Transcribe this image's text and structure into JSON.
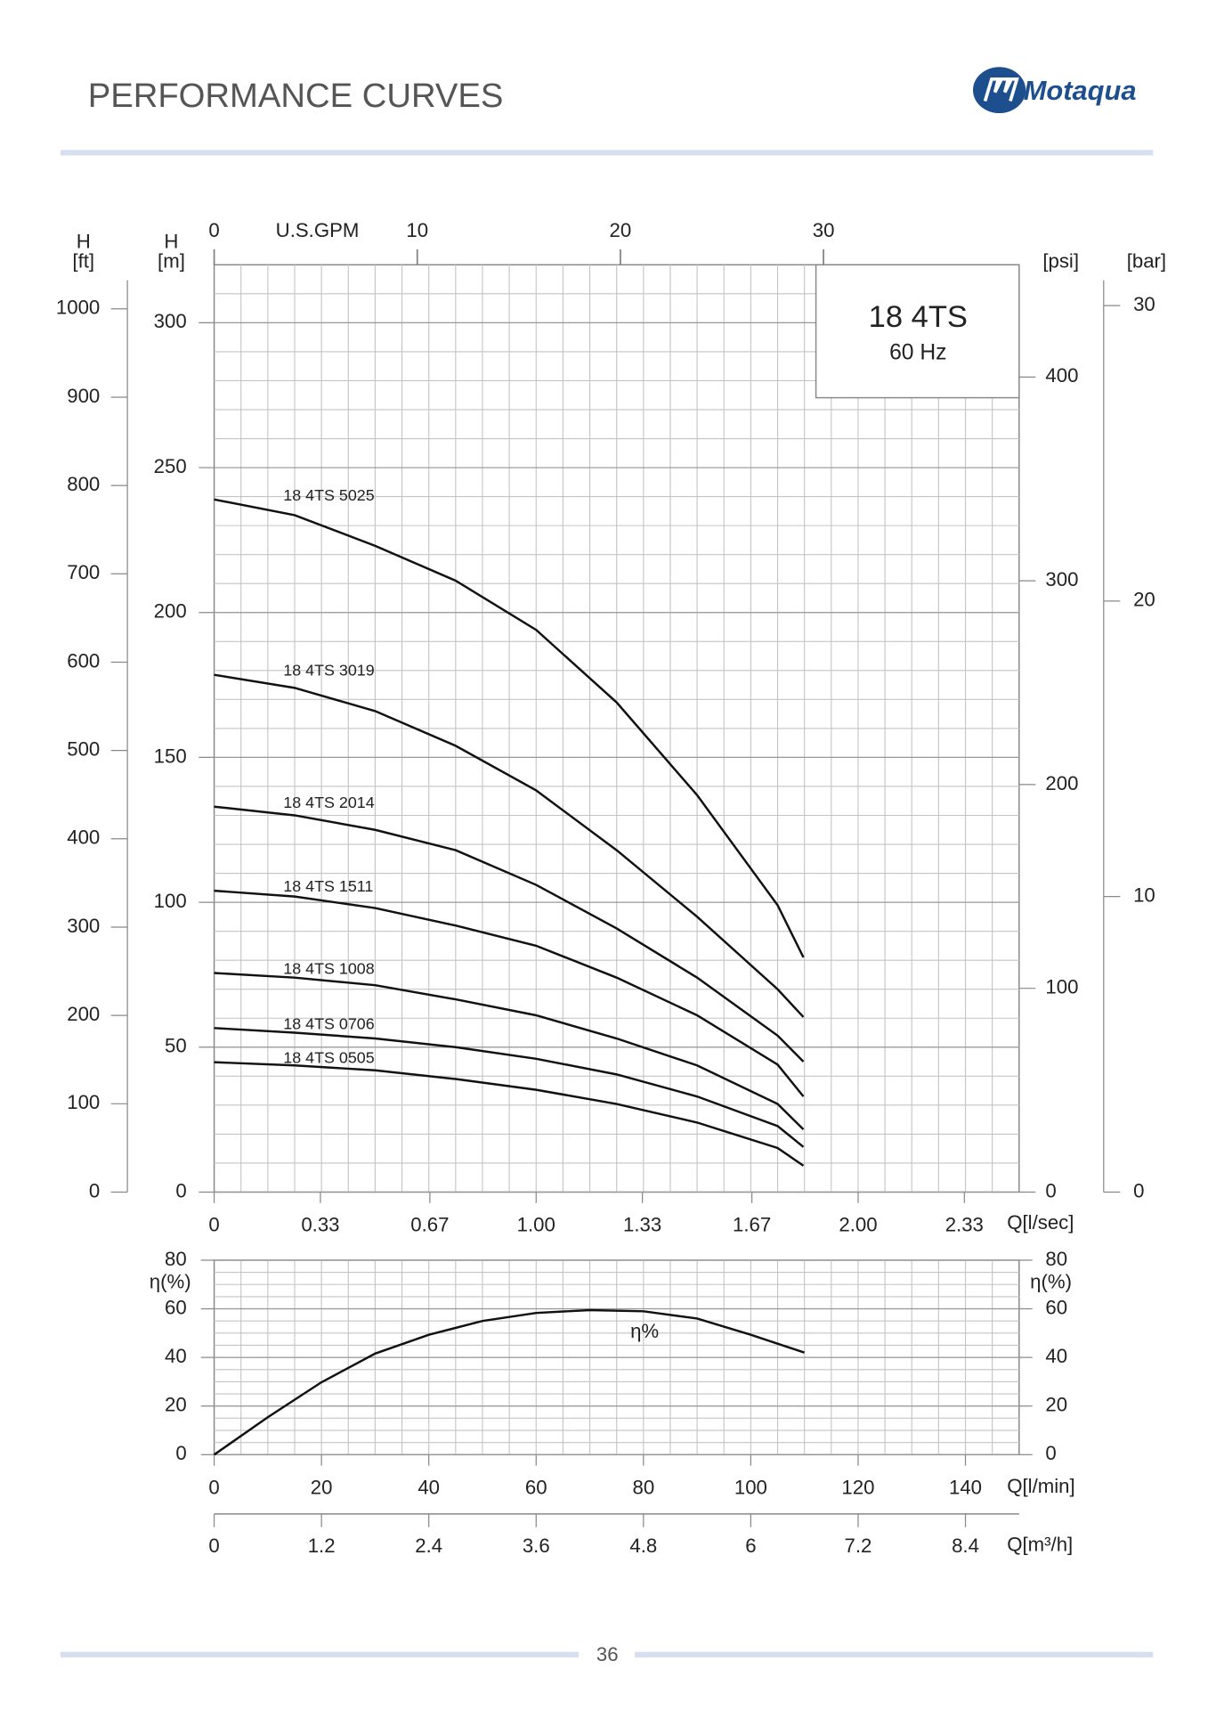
{
  "header": {
    "title": "PERFORMANCE CURVES",
    "logo": "Motaqua"
  },
  "chart_data": [
    {
      "type": "line",
      "title": "18 4TS",
      "subtitle": "60 Hz",
      "xlabel": "Q[l/sec]",
      "x2label": "U.S.GPM",
      "ylabel": {
        "symbol": "H",
        "unit": "[m]"
      },
      "y2label": {
        "symbol": "H",
        "unit": "[ft]"
      },
      "y3label": "[psi]",
      "y4label": "[bar]",
      "x": [
        0,
        0.25,
        0.5,
        0.75,
        1.0,
        1.25,
        1.5,
        1.75,
        1.83
      ],
      "xlim": [
        0,
        2.5
      ],
      "xticks": [
        0,
        0.33,
        0.67,
        {
          "value": 1,
          "label": "1.00"
        },
        1.33,
        1.67,
        {
          "value": 2,
          "label": "2.00"
        },
        2.33
      ],
      "x2lim": [
        0,
        39.63
      ],
      "x2ticks": [
        0,
        10,
        20,
        30
      ],
      "ylim": [
        0,
        320
      ],
      "yticks": [
        0,
        50,
        100,
        150,
        200,
        250,
        300
      ],
      "y2lim": [
        0,
        1049.9
      ],
      "y2ticks": [
        0,
        100,
        200,
        300,
        400,
        500,
        600,
        700,
        800,
        900,
        1000
      ],
      "y3lim": [
        0,
        455.1
      ],
      "y3ticks": [
        0,
        100,
        200,
        300,
        400
      ],
      "y4lim": [
        0,
        31.38
      ],
      "y4ticks": [
        0,
        10,
        20,
        30
      ],
      "grid": true,
      "series": [
        {
          "name": "18 4TS 5025",
          "color": "#111111",
          "values": [
            239,
            233.6,
            223,
            211,
            194,
            169,
            137,
            99,
            81
          ]
        },
        {
          "name": "18 4TS 3019",
          "color": "#111111",
          "values": [
            178.5,
            174,
            166,
            154,
            138.6,
            118,
            95,
            70,
            60.4
          ]
        },
        {
          "name": "18 4TS 2014",
          "color": "#111111",
          "values": [
            133,
            130,
            125,
            118,
            106,
            91,
            74,
            54,
            45
          ]
        },
        {
          "name": "18 4TS 1511",
          "color": "#111111",
          "values": [
            104,
            102,
            98,
            92,
            85,
            74,
            61,
            44,
            33
          ]
        },
        {
          "name": "18 4TS 1008",
          "color": "#111111",
          "values": [
            75.6,
            74,
            71.4,
            66.5,
            61,
            53,
            43.7,
            30.4,
            21.6
          ]
        },
        {
          "name": "18 4TS 0706",
          "color": "#111111",
          "values": [
            56.6,
            55,
            53,
            50,
            46,
            40.6,
            33,
            22.8,
            15.6
          ]
        },
        {
          "name": "18 4TS 0505",
          "color": "#111111",
          "values": [
            44.8,
            43.7,
            42,
            39,
            35.3,
            30.4,
            24,
            15.2,
            9.1
          ]
        }
      ]
    },
    {
      "type": "line",
      "curve_label": "η%",
      "xlabel": "Q[l/min]",
      "x2label": "Q[m³/h]",
      "ylabel": "η(%)",
      "x": [
        0,
        10,
        20,
        30,
        40,
        50,
        60,
        70,
        80,
        90,
        100,
        110
      ],
      "values": [
        0,
        15.4,
        29.8,
        41.6,
        49.3,
        55,
        58.3,
        59.5,
        59,
        56,
        49.3,
        42
      ],
      "color": "#111111",
      "xlim": [
        0,
        150
      ],
      "xticks": [
        0,
        20,
        40,
        60,
        80,
        100,
        120,
        140
      ],
      "x2lim": [
        0,
        9
      ],
      "x2ticks": [
        0,
        1.2,
        2.4,
        3.6,
        4.8,
        6,
        7.2,
        8.4
      ],
      "ylim": [
        0,
        80
      ],
      "yticks": [
        0,
        20,
        40,
        60,
        80
      ],
      "grid": true
    }
  ],
  "footer": {
    "page": "36"
  }
}
